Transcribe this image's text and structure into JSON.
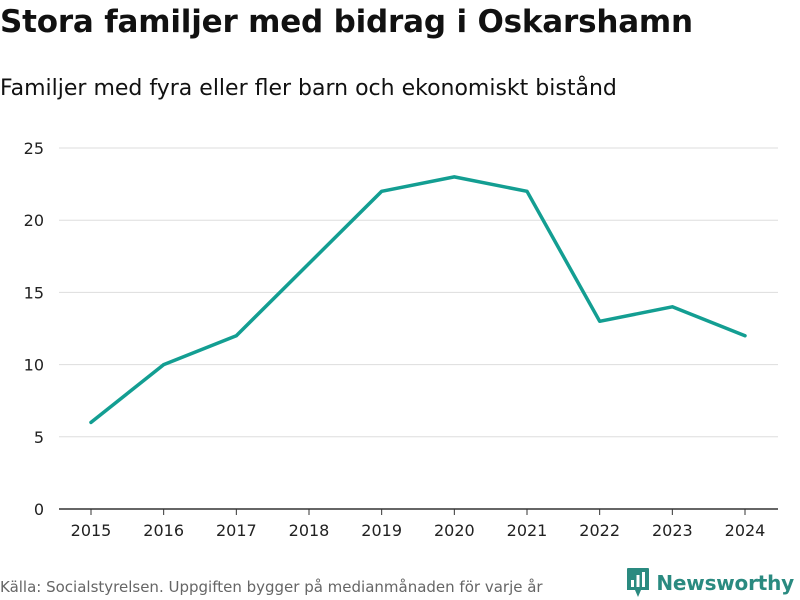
{
  "header": {
    "title": "Stora familjer med bidrag i Oskarshamn",
    "subtitle": "Familjer med fyra eller fler barn och ekonomiskt bistånd"
  },
  "footer": {
    "source": "Källa: Socialstyrelsen. Uppgiften bygger på medianmånaden för varje år",
    "brand": "Newsworthy",
    "brand_icon": "newsworthy-logo-icon"
  },
  "colors": {
    "line": "#139e92",
    "grid": "#dddddd",
    "axis": "#333333",
    "brand": "#2a8a80"
  },
  "chart_data": {
    "type": "line",
    "title": "Stora familjer med bidrag i Oskarshamn",
    "subtitle": "Familjer med fyra eller fler barn och ekonomiskt bistånd",
    "xlabel": "",
    "ylabel": "",
    "categories": [
      "2015",
      "2016",
      "2017",
      "2018",
      "2019",
      "2020",
      "2021",
      "2022",
      "2023",
      "2024"
    ],
    "series": [
      {
        "name": "Familjer med fyra eller fler barn och ekonomiskt bistånd",
        "values": [
          6,
          10,
          12,
          17,
          22,
          23,
          22,
          13,
          14,
          12
        ]
      }
    ],
    "ylim": [
      0,
      25
    ],
    "yticks": [
      0,
      5,
      10,
      15,
      20,
      25
    ],
    "grid": true,
    "legend": "none"
  }
}
